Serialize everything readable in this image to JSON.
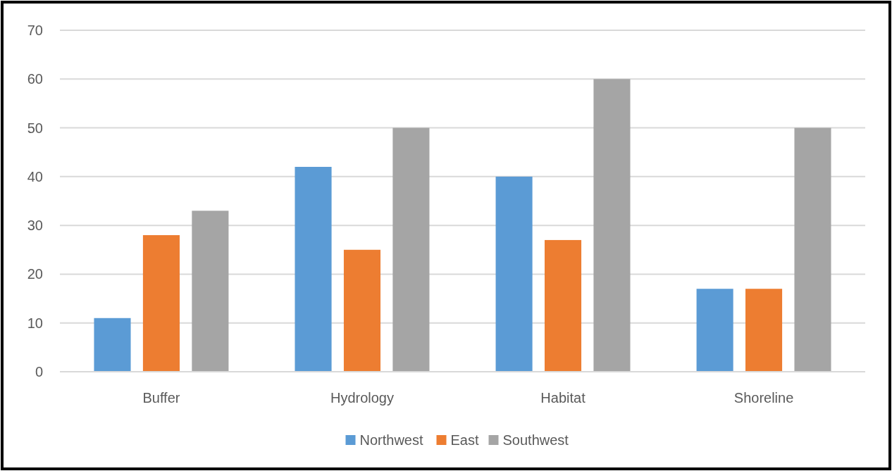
{
  "chart_data": {
    "type": "bar",
    "categories": [
      "Buffer",
      "Hydrology",
      "Habitat",
      "Shoreline"
    ],
    "series": [
      {
        "name": "Northwest",
        "color": "#5b9bd5",
        "values": [
          11,
          42,
          40,
          17
        ]
      },
      {
        "name": "East",
        "color": "#ed7d31",
        "values": [
          28,
          25,
          27,
          17
        ]
      },
      {
        "name": "Southwest",
        "color": "#a5a5a5",
        "values": [
          33,
          50,
          60,
          50
        ]
      }
    ],
    "ylim": [
      0,
      70
    ],
    "yticks": [
      0,
      10,
      20,
      30,
      40,
      50,
      60,
      70
    ],
    "grid": "y",
    "legend": "bottom"
  }
}
